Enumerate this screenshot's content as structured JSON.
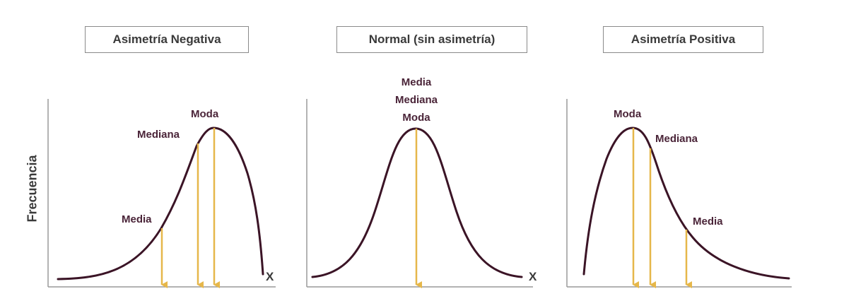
{
  "panels": [
    {
      "title": "Asimetría Negativa",
      "labels": {
        "media": "Media",
        "mediana": "Mediana",
        "moda": "Moda"
      },
      "x_axis_label": "X"
    },
    {
      "title": "Normal (sin asimetría)",
      "labels": {
        "media": "Media",
        "mediana": "Mediana",
        "moda": "Moda"
      },
      "x_axis_label": "X"
    },
    {
      "title": "Asimetría Positiva",
      "labels": {
        "media": "Media",
        "mediana": "Mediana",
        "moda": "Moda"
      }
    }
  ],
  "y_axis_label": "Frecuencia",
  "colors": {
    "curve": "#3b1426",
    "arrow": "#e6b74a",
    "axis": "#9a9a9a",
    "label": "#4a2438"
  }
}
